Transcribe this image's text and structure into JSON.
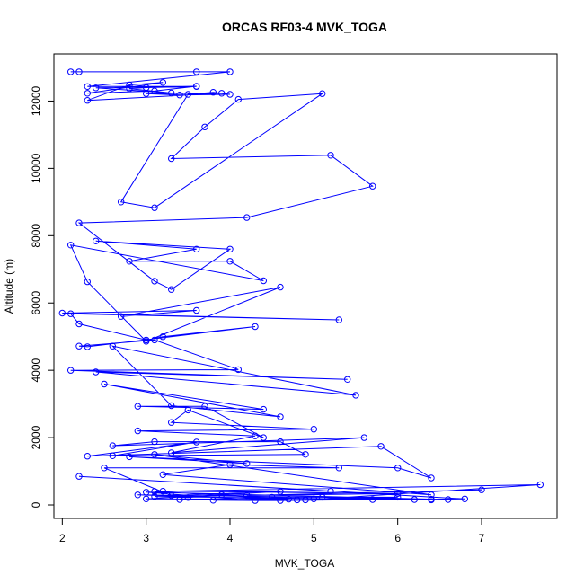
{
  "chart_data": {
    "type": "line",
    "title": "ORCAS RF03-4 MVK_TOGA",
    "xlabel": "MVK_TOGA",
    "ylabel": "Altitude (m)",
    "xlim": [
      1.9,
      7.9
    ],
    "ylim": [
      -400,
      13400
    ],
    "xticks": [
      2,
      3,
      4,
      5,
      6,
      7
    ],
    "xtick_labels": [
      "2",
      "3",
      "4",
      "5",
      "6",
      "7"
    ],
    "yticks": [
      0,
      2000,
      4000,
      6000,
      8000,
      10000,
      12000
    ],
    "ytick_labels": [
      "0",
      "2000",
      "4000",
      "6000",
      "8000",
      "10000",
      "12000"
    ],
    "grid": false,
    "series": [
      {
        "color": "#0000ff",
        "marker": "open-circle",
        "x": [
          2.1,
          2.2,
          3.6,
          4.0,
          2.3,
          3.6,
          3.0,
          2.8,
          3.3,
          2.4,
          3.6,
          3.1,
          2.3,
          3.2,
          2.8,
          2.3,
          3.9,
          3.0,
          3.4,
          4.0,
          3.8,
          3.5,
          2.7,
          3.1,
          5.1,
          4.1,
          3.7,
          3.3,
          5.2,
          5.7,
          4.2,
          2.2,
          3.1,
          3.3,
          4.0,
          2.4,
          3.6,
          2.8,
          4.0,
          4.4,
          2.1,
          2.3,
          3.0,
          4.6,
          2.7,
          3.6,
          2.0,
          5.3,
          2.1,
          2.2,
          3.0,
          3.2,
          4.3,
          2.3,
          2.2,
          3.1,
          4.1,
          2.1,
          5.4,
          2.4,
          5.5,
          2.6,
          3.3,
          4.6,
          2.5,
          4.4,
          2.9,
          3.7,
          4.4,
          3.5,
          3.3,
          5.0,
          2.9,
          4.3,
          3.3,
          5.6,
          2.6,
          3.1,
          4.6,
          4.9,
          2.6,
          3.6,
          2.3,
          5.8,
          6.4,
          6.0,
          2.8,
          4.2,
          3.1,
          6.4,
          3.2,
          4.0,
          5.3,
          2.5,
          3.3,
          4.6,
          3.0,
          4.7,
          3.1,
          7.7,
          4.9,
          2.9,
          5.1,
          6.4,
          3.1,
          3.5,
          3.9,
          4.5,
          6.0,
          5.0,
          6.6,
          3.0,
          4.3,
          3.8,
          4.6,
          5.7,
          6.2,
          4.8,
          3.4,
          6.4,
          6.8,
          2.2,
          5.2,
          3.2,
          6.0,
          4.2,
          7.0
        ],
        "y": [
          12870,
          12870,
          12870,
          12870,
          12430,
          12430,
          12400,
          12370,
          12240,
          12390,
          12440,
          12300,
          12230,
          12550,
          12480,
          12020,
          12230,
          12220,
          12180,
          12200,
          12260,
          12200,
          9000,
          8830,
          12220,
          12050,
          11230,
          10290,
          10390,
          9470,
          8540,
          8380,
          6650,
          6400,
          7600,
          7840,
          7600,
          7240,
          7240,
          6660,
          7720,
          6630,
          4860,
          6470,
          5600,
          5780,
          5700,
          5500,
          5680,
          5380,
          4900,
          5000,
          5300,
          4700,
          4720,
          4900,
          4020,
          4000,
          3730,
          3950,
          3260,
          4720,
          2950,
          2620,
          3590,
          2840,
          2930,
          2930,
          2000,
          2820,
          2450,
          2250,
          2200,
          2050,
          1550,
          2000,
          1760,
          1880,
          1880,
          1500,
          1460,
          1870,
          1450,
          1740,
          800,
          1100,
          1430,
          1230,
          1500,
          300,
          900,
          1200,
          1100,
          1100,
          280,
          400,
          180,
          170,
          400,
          600,
          150,
          300,
          230,
          150,
          250,
          220,
          300,
          230,
          230,
          180,
          160,
          380,
          130,
          140,
          130,
          160,
          160,
          150,
          160,
          170,
          180,
          850,
          410,
          410,
          340,
          280,
          450
        ]
      }
    ]
  }
}
